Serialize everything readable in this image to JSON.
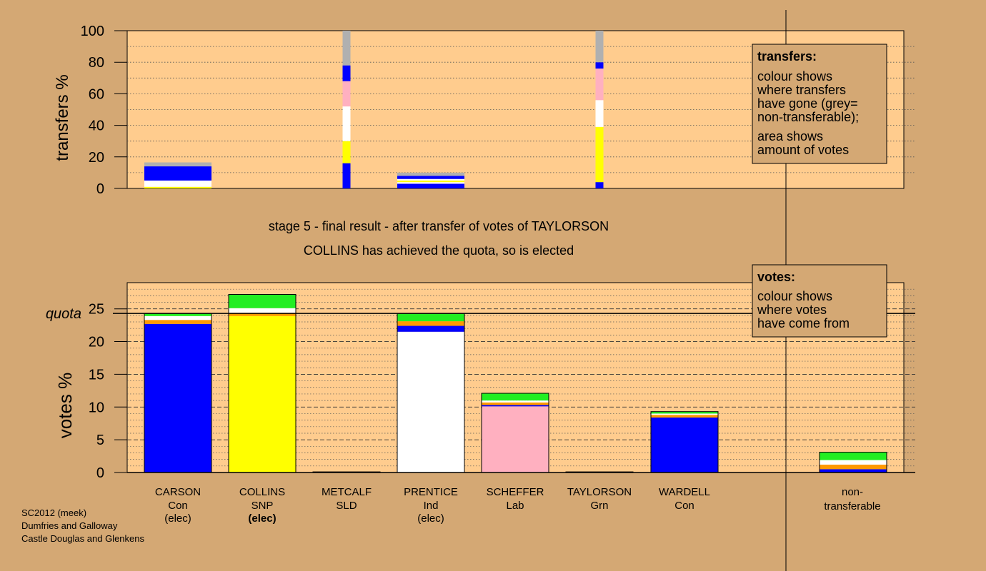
{
  "colors": {
    "background": "#d4a874",
    "plot_background": "#ffcc8e",
    "legend_background": "#d4a874",
    "Con": "#0000ff",
    "SNP": "#ffff00",
    "Ind": "#ffffff",
    "Lab": "#ffb0c0",
    "Grn": "#22ee22",
    "SLD": "#ff9900",
    "non_transferable": "#b0b0b0"
  },
  "footer": {
    "line1": "SC2012 (meek)",
    "line2": "Dumfries and Galloway",
    "line3": "Castle Douglas and Glenkens"
  },
  "stage": {
    "line1": "stage 5 - final result - after transfer of votes of TAYLORSON",
    "line2": "COLLINS has achieved the quota, so is elected"
  },
  "legend_transfers": {
    "title": "transfers:",
    "lines": [
      "colour shows",
      "where transfers",
      "have gone (grey=",
      "non-transferable);",
      "area shows",
      "amount of votes"
    ]
  },
  "legend_votes": {
    "title": "votes:",
    "lines": [
      "colour shows",
      "where votes",
      "have come from"
    ]
  },
  "candidates": [
    {
      "name": "CARSON",
      "party": "Con",
      "status": "(elec)",
      "bold_status": false
    },
    {
      "name": "COLLINS",
      "party": "SNP",
      "status": "(elec)",
      "bold_status": true
    },
    {
      "name": "METCALF",
      "party": "SLD",
      "status": "",
      "bold_status": false
    },
    {
      "name": "PRENTICE",
      "party": "Ind",
      "status": "(elec)",
      "bold_status": false
    },
    {
      "name": "SCHEFFER",
      "party": "Lab",
      "status": "",
      "bold_status": false
    },
    {
      "name": "TAYLORSON",
      "party": "Grn",
      "status": "",
      "bold_status": false
    },
    {
      "name": "WARDELL",
      "party": "Con",
      "status": "",
      "bold_status": false
    }
  ],
  "nontransferable_label": [
    "non-",
    "transferable"
  ],
  "chart_data": [
    {
      "type": "bar",
      "ylabel": "transfers %",
      "ylim": [
        0,
        100
      ],
      "yticks": [
        0,
        20,
        40,
        60,
        80,
        100
      ],
      "bars": [
        {
          "kind": "wide",
          "slot": 0,
          "segments": [
            {
              "party": "SNP",
              "from": 0,
              "to": 1
            },
            {
              "party": "Ind",
              "from": 1,
              "to": 5
            },
            {
              "party": "Con",
              "from": 5,
              "to": 14
            },
            {
              "party": "non_transferable",
              "from": 14,
              "to": 16.5
            }
          ]
        },
        {
          "kind": "narrow",
          "slot": 2,
          "segments": [
            {
              "party": "Con",
              "from": 0,
              "to": 16
            },
            {
              "party": "SNP",
              "from": 16,
              "to": 30
            },
            {
              "party": "Ind",
              "from": 30,
              "to": 52
            },
            {
              "party": "Lab",
              "from": 52,
              "to": 68
            },
            {
              "party": "Con",
              "from": 68,
              "to": 78
            },
            {
              "party": "non_transferable",
              "from": 78,
              "to": 100
            }
          ]
        },
        {
          "kind": "wide",
          "slot": 3,
          "segments": [
            {
              "party": "Con",
              "from": 0,
              "to": 3
            },
            {
              "party": "Ind",
              "from": 3,
              "to": 4
            },
            {
              "party": "SNP",
              "from": 4,
              "to": 5
            },
            {
              "party": "Ind",
              "from": 5,
              "to": 6
            },
            {
              "party": "Con",
              "from": 6,
              "to": 8
            },
            {
              "party": "non_transferable",
              "from": 8,
              "to": 10
            }
          ]
        },
        {
          "kind": "narrow",
          "slot": 5,
          "segments": [
            {
              "party": "Con",
              "from": 0,
              "to": 4
            },
            {
              "party": "SNP",
              "from": 4,
              "to": 39
            },
            {
              "party": "Ind",
              "from": 39,
              "to": 56
            },
            {
              "party": "Lab",
              "from": 56,
              "to": 76
            },
            {
              "party": "Con",
              "from": 76,
              "to": 80
            },
            {
              "party": "non_transferable",
              "from": 80,
              "to": 100
            }
          ]
        }
      ]
    },
    {
      "type": "bar",
      "ylabel": "votes %",
      "quota_label": "quota",
      "quota": 24.3,
      "ylim": [
        0,
        29
      ],
      "yticks": [
        0,
        5,
        10,
        15,
        20,
        25
      ],
      "bars": [
        {
          "slot": 0,
          "segments": [
            {
              "party": "Con",
              "from": 0,
              "to": 22.7
            },
            {
              "party": "SLD",
              "from": 22.7,
              "to": 23.3
            },
            {
              "party": "Ind",
              "from": 23.3,
              "to": 23.9
            },
            {
              "party": "Grn",
              "from": 23.9,
              "to": 24.3
            }
          ]
        },
        {
          "slot": 1,
          "segments": [
            {
              "party": "SNP",
              "from": 0,
              "to": 23.9
            },
            {
              "party": "SLD",
              "from": 23.9,
              "to": 24.4
            },
            {
              "party": "Ind",
              "from": 24.4,
              "to": 25.1
            },
            {
              "party": "Grn",
              "from": 25.1,
              "to": 27.2
            }
          ]
        },
        {
          "slot": 2,
          "segments": [
            {
              "party": "SLD",
              "from": 0,
              "to": 0.1
            }
          ]
        },
        {
          "slot": 3,
          "segments": [
            {
              "party": "Ind",
              "from": 0,
              "to": 21.5
            },
            {
              "party": "Con",
              "from": 21.5,
              "to": 22.4
            },
            {
              "party": "SLD",
              "from": 22.4,
              "to": 23.1
            },
            {
              "party": "Grn",
              "from": 23.1,
              "to": 24.3
            }
          ]
        },
        {
          "slot": 4,
          "segments": [
            {
              "party": "Lab",
              "from": 0,
              "to": 10.1
            },
            {
              "party": "Con",
              "from": 10.1,
              "to": 10.3
            },
            {
              "party": "SLD",
              "from": 10.3,
              "to": 10.7
            },
            {
              "party": "Ind",
              "from": 10.7,
              "to": 11.0
            },
            {
              "party": "Grn",
              "from": 11.0,
              "to": 12.1
            }
          ]
        },
        {
          "slot": 5,
          "segments": [
            {
              "party": "Grn",
              "from": 0,
              "to": 0.1
            }
          ]
        },
        {
          "slot": 6,
          "segments": [
            {
              "party": "Con",
              "from": 0,
              "to": 8.4
            },
            {
              "party": "SLD",
              "from": 8.4,
              "to": 8.8
            },
            {
              "party": "Ind",
              "from": 8.8,
              "to": 9.0
            },
            {
              "party": "Grn",
              "from": 9.0,
              "to": 9.3
            }
          ]
        },
        {
          "slot": 8,
          "segments": [
            {
              "party": "Con",
              "from": 0,
              "to": 0.5
            },
            {
              "party": "SLD",
              "from": 0.5,
              "to": 1.2
            },
            {
              "party": "Ind",
              "from": 1.2,
              "to": 1.9
            },
            {
              "party": "Grn",
              "from": 1.9,
              "to": 3.1
            }
          ]
        }
      ]
    }
  ]
}
